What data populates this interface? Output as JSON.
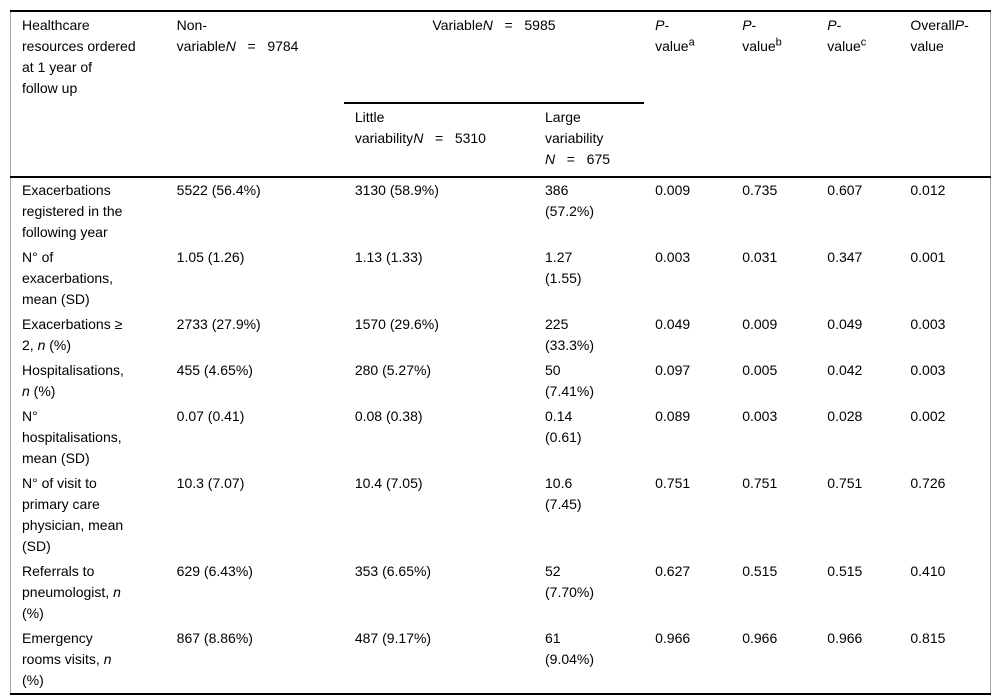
{
  "table": {
    "header": {
      "col1": "Healthcare resources&nbsp;ordered at 1 year of follow up",
      "col2": "Non-variable<i>N</i>&nbsp;&nbsp;&nbsp;=&nbsp;&nbsp;&nbsp;9784",
      "variable_group": "Variable<i>N</i>&nbsp;&nbsp;&nbsp;=&nbsp;&nbsp;&nbsp;5985",
      "col3": "Little variability<i>N</i>&nbsp;&nbsp;&nbsp;=&nbsp;&nbsp;&nbsp;5310",
      "col4": "Large variability <i>N</i>&nbsp;&nbsp;&nbsp;=&nbsp;&nbsp;&nbsp;675",
      "col5": "<i>P</i>-value<sup>a</sup>",
      "col6": "<i>P</i>-value<sup>b</sup>",
      "col7": "<i>P</i>-value<sup>c</sup>",
      "col8": "Overall<i>P</i>-value"
    },
    "rows": [
      {
        "cells": [
          "Exacerbations registered in the following year",
          "5522 (56.4%)",
          "3130 (58.9%)",
          "386 (57.2%)",
          "0.009",
          "0.735",
          "0.607",
          "0.012"
        ]
      },
      {
        "cells": [
          "N° of exacerbations, mean (SD)",
          "1.05 (1.26)",
          "1.13 (1.33)",
          "1.27 (1.55)",
          "0.003",
          "0.031",
          "0.347",
          "0.001"
        ]
      },
      {
        "cells": [
          "Exacerbations ≥ 2, <i>n</i> (%)",
          "2733 (27.9%)",
          "1570 (29.6%)",
          "225 (33.3%)",
          "0.049",
          "0.009",
          "0.049",
          "0.003"
        ]
      },
      {
        "cells": [
          "Hospitalisations, <i>n</i> (%)",
          "455 (4.65%)",
          "280 (5.27%)",
          "50 (7.41%)",
          "0.097",
          "0.005",
          "0.042",
          "0.003"
        ]
      },
      {
        "cells": [
          "N° hospitalisations, mean (SD)",
          "0.07 (0.41)",
          "0.08 (0.38)",
          "0.14 (0.61)",
          "0.089",
          "0.003",
          "0.028",
          "0.002"
        ]
      },
      {
        "cells": [
          "N° of visit to primary care physician, mean (SD)",
          "10.3 (7.07)",
          "10.4 (7.05)",
          "10.6 (7.45)",
          "0.751",
          "0.751",
          "0.751",
          "0.726"
        ]
      },
      {
        "cells": [
          "Referrals to pneumologist, <i>n</i> (%)",
          "629 (6.43%)",
          "353 (6.65%)",
          "52 (7.70%)",
          "0.627",
          "0.515",
          "0.515",
          "0.410"
        ]
      },
      {
        "cells": [
          "Emergency rooms visits, <i>n</i> (%)",
          "867 (8.86%)",
          "487 (9.17%)",
          "61 (9.04%)",
          "0.966",
          "0.966",
          "0.966",
          "0.815"
        ]
      }
    ]
  }
}
